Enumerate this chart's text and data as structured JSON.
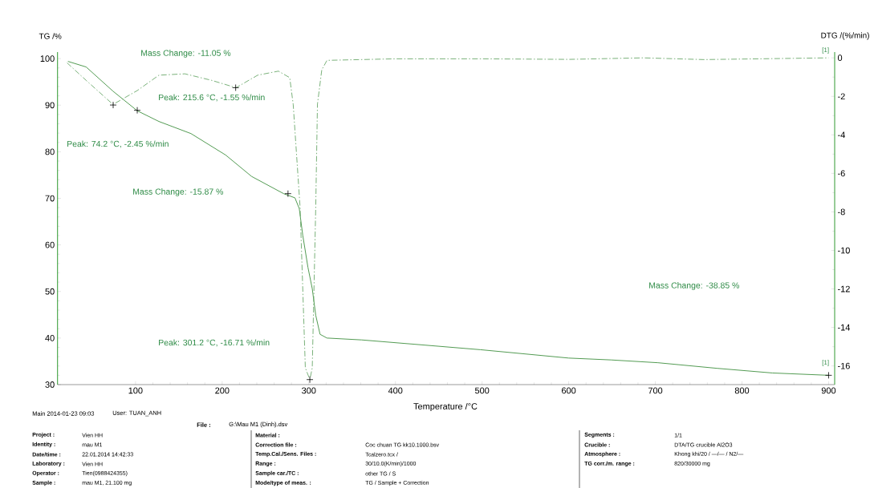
{
  "chart_data": {
    "type": "line",
    "xlabel": "Temperature /°C",
    "ylabel": "TG /%",
    "y2label": "DTG /(%/min)",
    "xlim": [
      10,
      907
    ],
    "ylim": [
      30,
      101.4
    ],
    "y2lim": [
      -16.97,
      0.3
    ],
    "xticks": [
      100,
      200,
      300,
      400,
      500,
      600,
      700,
      800,
      900
    ],
    "yticks": [
      30,
      40,
      50,
      60,
      70,
      80,
      90,
      100
    ],
    "y2ticks": [
      -16,
      -14,
      -12,
      -10,
      -8,
      -6,
      -4,
      -2,
      0
    ],
    "series": [
      {
        "type": "line",
        "color": "#3f8f3f",
        "line_style": "solid",
        "x": [
          22,
          43,
          74,
          102,
          127,
          164,
          204,
          234,
          271,
          284,
          289,
          293,
          299,
          304,
          308,
          313,
          321,
          361,
          498,
          600,
          649,
          703,
          771,
          835,
          900
        ],
        "values": [
          99.4,
          98.2,
          93,
          88.8,
          86.5,
          83.9,
          79.3,
          74.7,
          71,
          70.1,
          67.8,
          62.1,
          55.2,
          50.6,
          44.9,
          40.8,
          40,
          39.6,
          37.5,
          35.7,
          35.3,
          34.7,
          33.5,
          32.5,
          32
        ]
      },
      {
        "type": "line",
        "axis": "y2",
        "color": "#6aa86a",
        "line_style": "dashed",
        "x": [
          21,
          43,
          74,
          102,
          127,
          157,
          188,
          216,
          241,
          265,
          278,
          282,
          290,
          296,
          301.2,
          304,
          308,
          310,
          315,
          321,
          400,
          500,
          600,
          686,
          756,
          820,
          900
        ],
        "values": [
          -0.26,
          -1.17,
          -2.42,
          -1.7,
          -0.9,
          -0.83,
          -1.17,
          -1.55,
          -0.9,
          -0.69,
          -1.03,
          -2.42,
          -7.8,
          -16.1,
          -16.71,
          -16.1,
          -7.8,
          -2.4,
          -0.62,
          -0.13,
          -0.05,
          -0.05,
          -0.08,
          0,
          -0.09,
          -0.05,
          0
        ]
      },
      {
        "type": "scatter",
        "marker": "cross",
        "color": "#000000",
        "x": [
          102,
          276,
          900
        ],
        "values": [
          88.9,
          71,
          32
        ]
      },
      {
        "type": "scatter",
        "axis": "y2",
        "marker": "cross",
        "color": "#000000",
        "x": [
          74.2,
          215.6,
          301.2
        ],
        "values": [
          -2.45,
          -1.55,
          -16.71
        ]
      }
    ],
    "annotations": [
      "Mass Change: -11.05 %",
      "Peak: 215.6 °C, -1.55 %/min",
      "Peak: 74.2 °C, -2.45 %/min",
      "Mass Change: -15.87 %",
      "Mass Change: -38.85 %",
      "Peak: 301.2 °C, -16.71 %/min",
      "[1]",
      "[1]",
      "Main 2014-01-23 09:03",
      "User: TUAN_ANH",
      "File :",
      "G:\\Mau M1 (Dinh).dsv",
      "Project :",
      "Vien HH",
      "Identity :",
      "mau M1",
      "Date/time :",
      "22.01.2014 14:42:33",
      "Laboratory :",
      "Vien HH",
      "Operator :",
      "Tien(0988424355)",
      "Sample :",
      "mau M1, 21.100 mg",
      "Material :",
      "Correction file :",
      "Coc chuan TG kk10.1000.bsv",
      "Temp.Cal./Sens. Files :",
      "Tcalzero.tcx /",
      "Range :",
      "30/10.0(K/min)/1000",
      "Sample car./TC :",
      "other TG / S",
      "Mode/type of meas. :",
      "TG / Sample + Correction",
      "Segments :",
      "1/1",
      "Crucible :",
      "DTA/TG crucible Al2O3",
      "Atmosphere :",
      "Khong khi/20 / —/— / N2/—",
      "TG corr./m. range :",
      "820/30000 mg"
    ]
  }
}
